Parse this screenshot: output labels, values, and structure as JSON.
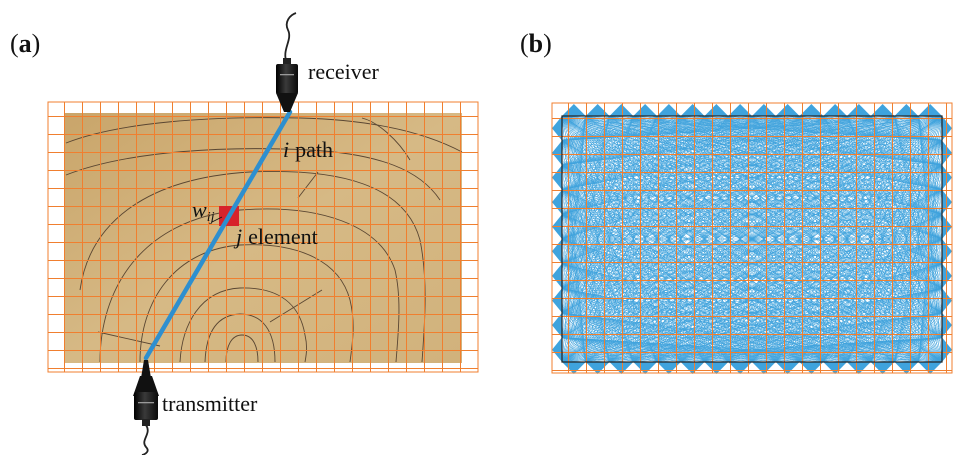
{
  "panels": {
    "a": {
      "label_open": "(",
      "label_letter": "a",
      "label_close": ")",
      "receiver_label": "receiver",
      "transmitter_label": "transmitter",
      "path_label_var": "i",
      "path_label_text": "path",
      "element_label_var": "j",
      "element_label_text": "element",
      "weight_label_var": "w",
      "weight_label_sub": "ij"
    },
    "b": {
      "label_open": "(",
      "label_letter": "b",
      "label_close": ")"
    }
  },
  "colors": {
    "grid": "#f07f2f",
    "medium": "#d2b47e",
    "medium_dark": "#c39a5f",
    "ray": "#2e8fcf",
    "ray_light": "#3fa3dd",
    "element": "#d7232b",
    "contour": "#5a4632",
    "sensor": "#1b1b1b"
  },
  "icons": {
    "receiver": "sensor-probe-icon",
    "transmitter": "sensor-probe-icon"
  }
}
